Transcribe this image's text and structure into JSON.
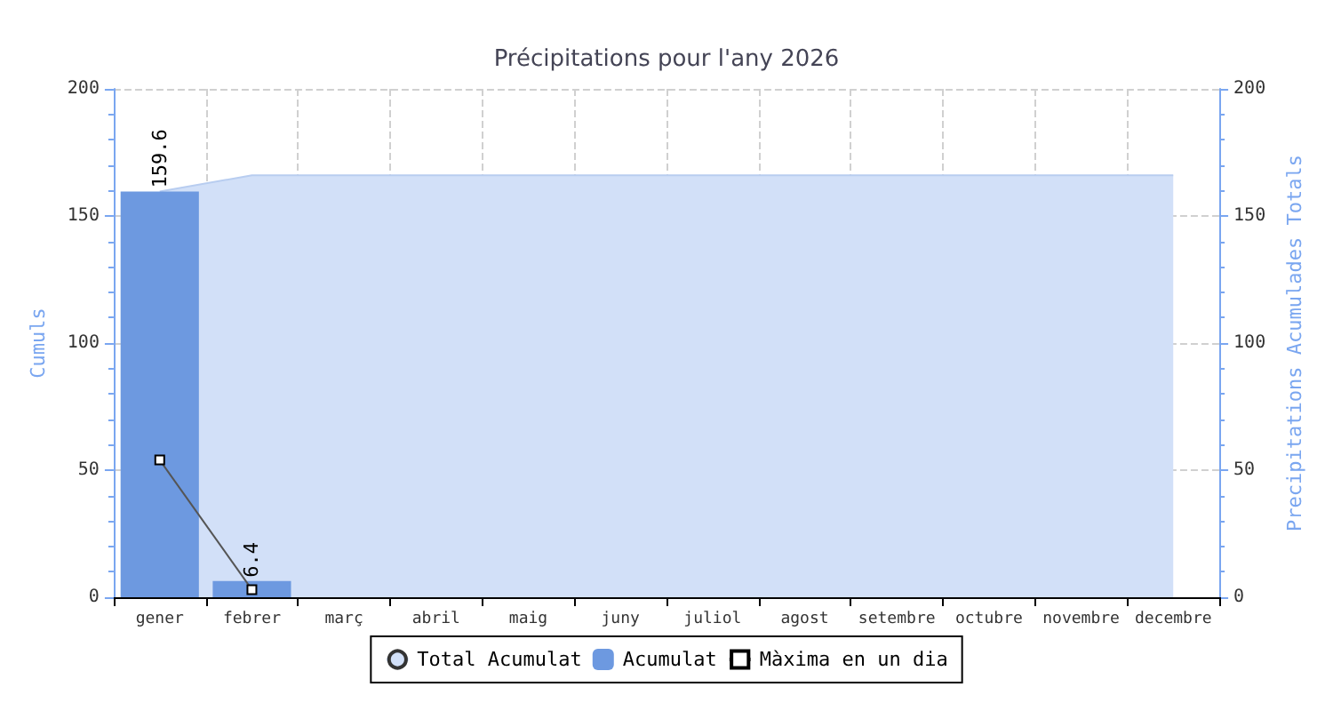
{
  "chart_data": {
    "type": "bar",
    "title": "Précipitations pour l'any 2026",
    "ylabel": "Cumuls",
    "y2label": "Precipitations Acumulades Totals",
    "categories": [
      "gener",
      "febrer",
      "març",
      "abril",
      "maig",
      "juny",
      "juliol",
      "agost",
      "setembre",
      "octubre",
      "novembre",
      "decembre"
    ],
    "series": [
      {
        "name": "Total Acumulat",
        "type": "area",
        "axis": "y2",
        "color": "#d2e0f8",
        "values": [
          159.6,
          166,
          166,
          166,
          166,
          166,
          166,
          166,
          166,
          166,
          166,
          166
        ]
      },
      {
        "name": "Acumulat",
        "color": "#6d99e0",
        "values": [
          159.6,
          6.4,
          null,
          null,
          null,
          null,
          null,
          null,
          null,
          null,
          null,
          null
        ],
        "value_labels": [
          "159.6",
          "6.4",
          null,
          null,
          null,
          null,
          null,
          null,
          null,
          null,
          null,
          null
        ]
      },
      {
        "name": "Màxima en un dia",
        "type": "line",
        "color": "#555555",
        "marker": "square",
        "values": [
          54,
          3,
          null,
          null,
          null,
          null,
          null,
          null,
          null,
          null,
          null,
          null
        ]
      }
    ],
    "ylim": [
      0,
      200
    ],
    "yticks": [
      0,
      50,
      100,
      150,
      200
    ],
    "y2lim": [
      0,
      200
    ],
    "y2ticks": [
      0,
      50,
      100,
      150,
      200
    ],
    "grid": true,
    "legend": "bottom"
  }
}
